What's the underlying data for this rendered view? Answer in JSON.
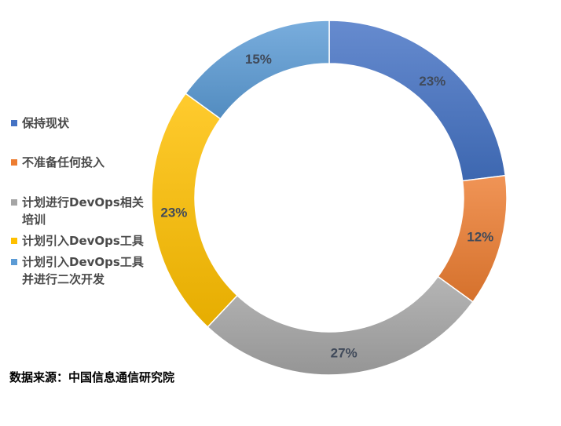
{
  "chart_data": {
    "type": "pie",
    "variant": "donut",
    "categories": [
      "保持现状",
      "不准备任何投入",
      "计划进行DevOps相关培训",
      "计划引入DevOps工具",
      "计划引入DevOps工具并进行二次开发"
    ],
    "values": [
      23,
      12,
      27,
      23,
      15
    ],
    "value_labels": [
      "23%",
      "12%",
      "27%",
      "23%",
      "15%"
    ],
    "colors": [
      "#4472c4",
      "#ed7d31",
      "#a5a5a5",
      "#ffc000",
      "#5b9bd5"
    ],
    "legend": {
      "position": "left",
      "entries": [
        "保持现状",
        "不准备任何投入",
        "计划进行DevOps相关培训",
        "计划引入DevOps工具",
        "计划引入DevOps工具并进行二次开发"
      ]
    },
    "source": "数据来源：中国信息通信研究院"
  }
}
